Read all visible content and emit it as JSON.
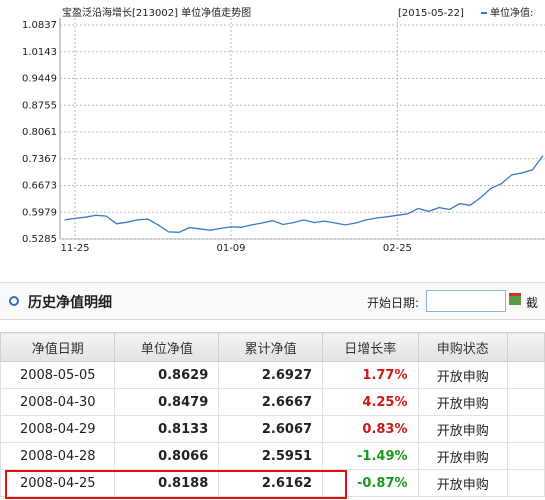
{
  "chart_data": {
    "type": "line",
    "title": "宝盈泛沿海增长[213002] 单位净值走势图",
    "date_label": "[2015-05-22]",
    "categories": [
      null,
      "11-25",
      null,
      null,
      null,
      null,
      null,
      null,
      null,
      null,
      null,
      null,
      null,
      null,
      null,
      null,
      "01-09",
      null,
      null,
      null,
      null,
      null,
      null,
      null,
      null,
      null,
      null,
      null,
      null,
      null,
      null,
      null,
      "02-25",
      null,
      null,
      null,
      null,
      null,
      null,
      null,
      null,
      null,
      null,
      null,
      null,
      null,
      null
    ],
    "series": [
      {
        "name": "单位净值:",
        "color": "#3a78c9",
        "values": [
          0.578,
          0.582,
          0.585,
          0.59,
          0.588,
          0.568,
          0.572,
          0.578,
          0.58,
          0.565,
          0.547,
          0.546,
          0.558,
          0.555,
          0.551,
          0.556,
          0.56,
          0.559,
          0.565,
          0.57,
          0.576,
          0.566,
          0.571,
          0.578,
          0.571,
          0.575,
          0.57,
          0.565,
          0.57,
          0.578,
          0.583,
          0.586,
          0.59,
          0.594,
          0.608,
          0.6,
          0.61,
          0.605,
          0.62,
          0.616,
          0.636,
          0.66,
          0.672,
          0.695,
          0.7,
          0.708,
          0.745
        ]
      }
    ],
    "ylim": [
      0.5285,
      1.0837
    ],
    "yticks": [
      1.0837,
      1.0143,
      0.9449,
      0.8755,
      0.8061,
      0.7367,
      0.6673,
      0.5979,
      0.5285
    ],
    "grid": true
  },
  "section": {
    "title": "历史净值明细",
    "start_label": "开始日期:",
    "end_label": "截"
  },
  "table": {
    "headers": [
      "净值日期",
      "单位净值",
      "累计净值",
      "日增长率",
      "申购状态"
    ],
    "rows": [
      [
        "2008-05-05",
        "0.8629",
        "2.6927",
        "1.77%",
        "开放申购"
      ],
      [
        "2008-04-30",
        "0.8479",
        "2.6667",
        "4.25%",
        "开放申购"
      ],
      [
        "2008-04-29",
        "0.8133",
        "2.6067",
        "0.83%",
        "开放申购"
      ],
      [
        "2008-04-28",
        "0.8066",
        "2.5951",
        "-1.49%",
        "开放申购"
      ],
      [
        "2008-04-25",
        "0.8188",
        "2.6162",
        "-0.87%",
        "开放申购"
      ]
    ]
  }
}
